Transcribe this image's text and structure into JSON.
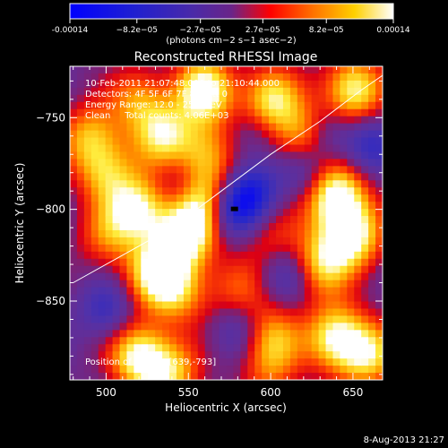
{
  "chart_data": {
    "type": "heatmap",
    "title": "Reconstructed RHESSI Image",
    "xlabel": "Heliocentric X (arcsec)",
    "ylabel": "Heliocentric Y (arcsec)",
    "xlim": [
      478,
      668
    ],
    "ylim": [
      -893,
      -722
    ],
    "x_ticks": [
      500,
      550,
      600,
      650
    ],
    "y_ticks": [
      -750,
      -800,
      -850
    ],
    "colorbar": {
      "range": [
        -0.00014,
        0.00014
      ],
      "tick_values": [
        -0.00014,
        -8.2e-05,
        -2.7e-05,
        2.7e-05,
        8.2e-05,
        0.00014
      ],
      "tick_labels": [
        "-0.00014",
        "−8.2e−05",
        "−2.7e−05",
        "2.7e−05",
        "8.2e−05",
        "0.00014"
      ],
      "units": "(photons cm−2 s−1 asec−2)",
      "colors": [
        "#0000ff",
        "#3030c0",
        "#5a2aa0",
        "#7b1e78",
        "#ff0000",
        "#ff8000",
        "#ffd000",
        "#ffffff"
      ]
    },
    "annotations": {
      "time_range": "10-Feb-2011 21:07:48.000 to 21:10:44.000",
      "detectors": "Detectors: 4F 5F 6F 7F 8F, Att 0",
      "energy_range": "Energy Range: 12.0 - 25.0 keV",
      "method": "Clean     Total counts: 4.06E+03",
      "peak": "Position of Peak = [639,-793]"
    },
    "peak_position": [
      639,
      -793
    ],
    "limb_curve": [
      [
        480,
        -840
      ],
      [
        510,
        -825
      ],
      [
        540,
        -810
      ],
      [
        570,
        -790
      ],
      [
        600,
        -770
      ],
      [
        630,
        -752
      ],
      [
        655,
        -735
      ],
      [
        668,
        -727
      ]
    ],
    "hotspots": [
      {
        "x": 560,
        "y": -735,
        "level": 0.95
      },
      {
        "x": 600,
        "y": -740,
        "level": 0.8
      },
      {
        "x": 620,
        "y": -762,
        "level": 0.7
      },
      {
        "x": 650,
        "y": -735,
        "level": 0.9
      },
      {
        "x": 535,
        "y": -760,
        "level": 0.7
      },
      {
        "x": 520,
        "y": -740,
        "level": 0.55
      },
      {
        "x": 560,
        "y": -770,
        "level": 0.6
      },
      {
        "x": 500,
        "y": -780,
        "level": 0.6
      },
      {
        "x": 560,
        "y": -795,
        "level": 0.65
      },
      {
        "x": 520,
        "y": -800,
        "level": 0.85
      },
      {
        "x": 548,
        "y": -815,
        "level": 0.9
      },
      {
        "x": 530,
        "y": -835,
        "level": 0.8
      },
      {
        "x": 545,
        "y": -845,
        "level": 0.55
      },
      {
        "x": 500,
        "y": -815,
        "level": 0.45
      },
      {
        "x": 490,
        "y": -760,
        "level": 0.6
      },
      {
        "x": 640,
        "y": -793,
        "level": 1.0
      },
      {
        "x": 650,
        "y": -815,
        "level": 0.85
      },
      {
        "x": 630,
        "y": -830,
        "level": 0.7
      },
      {
        "x": 640,
        "y": -870,
        "level": 0.9
      },
      {
        "x": 600,
        "y": -870,
        "level": 0.6
      },
      {
        "x": 660,
        "y": -880,
        "level": 0.7
      },
      {
        "x": 520,
        "y": -880,
        "level": 0.9
      },
      {
        "x": 540,
        "y": -890,
        "level": 0.65
      },
      {
        "x": 580,
        "y": -845,
        "level": 0.4
      },
      {
        "x": 600,
        "y": -815,
        "level": 0.35
      },
      {
        "x": 600,
        "y": -890,
        "level": 0.35
      }
    ],
    "coldspots": [
      {
        "x": 578,
        "y": -800,
        "level": 1.0
      },
      {
        "x": 590,
        "y": -790,
        "level": 0.8
      },
      {
        "x": 620,
        "y": -778,
        "level": 0.6
      },
      {
        "x": 635,
        "y": -760,
        "level": 0.55
      },
      {
        "x": 660,
        "y": -765,
        "level": 0.65
      },
      {
        "x": 610,
        "y": -835,
        "level": 0.55
      },
      {
        "x": 580,
        "y": -865,
        "level": 0.5
      },
      {
        "x": 500,
        "y": -855,
        "level": 0.6
      },
      {
        "x": 545,
        "y": -785,
        "level": 0.35
      },
      {
        "x": 590,
        "y": -760,
        "level": 0.3
      }
    ]
  },
  "footer": {
    "date": "8-Aug-2013 21:27"
  }
}
